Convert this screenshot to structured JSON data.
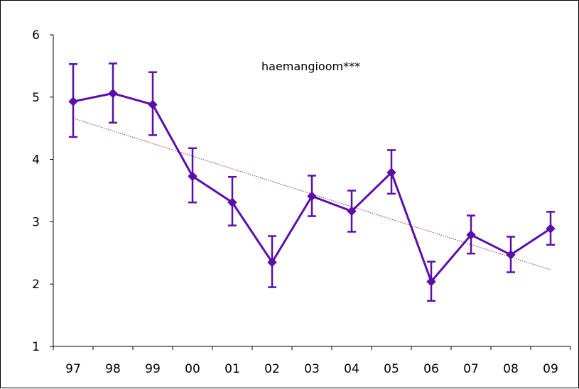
{
  "chart_data": {
    "type": "line",
    "title": "",
    "xlabel": "",
    "ylabel": "",
    "annotation": "haemangioom***",
    "categories": [
      "97",
      "98",
      "99",
      "00",
      "01",
      "02",
      "03",
      "04",
      "05",
      "06",
      "07",
      "08",
      "09"
    ],
    "ylim": [
      1,
      6
    ],
    "yticks": [
      "1",
      "2",
      "3",
      "4",
      "5",
      "6"
    ],
    "grid": false,
    "legend": "none",
    "series": [
      {
        "values": [
          4.93,
          5.06,
          4.88,
          3.73,
          3.31,
          2.35,
          3.41,
          3.17,
          3.79,
          2.04,
          2.79,
          2.47,
          2.89
        ],
        "error_upper": [
          5.53,
          5.54,
          5.4,
          4.18,
          3.72,
          2.77,
          3.74,
          3.5,
          4.15,
          2.36,
          3.1,
          2.76,
          3.16
        ],
        "error_lower": [
          4.36,
          4.59,
          4.39,
          3.31,
          2.94,
          1.95,
          3.09,
          2.84,
          3.45,
          1.73,
          2.49,
          2.19,
          2.63
        ],
        "color": "#5b0fa8",
        "marker": "diamond"
      }
    ],
    "trendline": {
      "type": "linear",
      "start": 4.66,
      "end": 2.23,
      "color": "#a0304a",
      "style": "dotted"
    }
  }
}
